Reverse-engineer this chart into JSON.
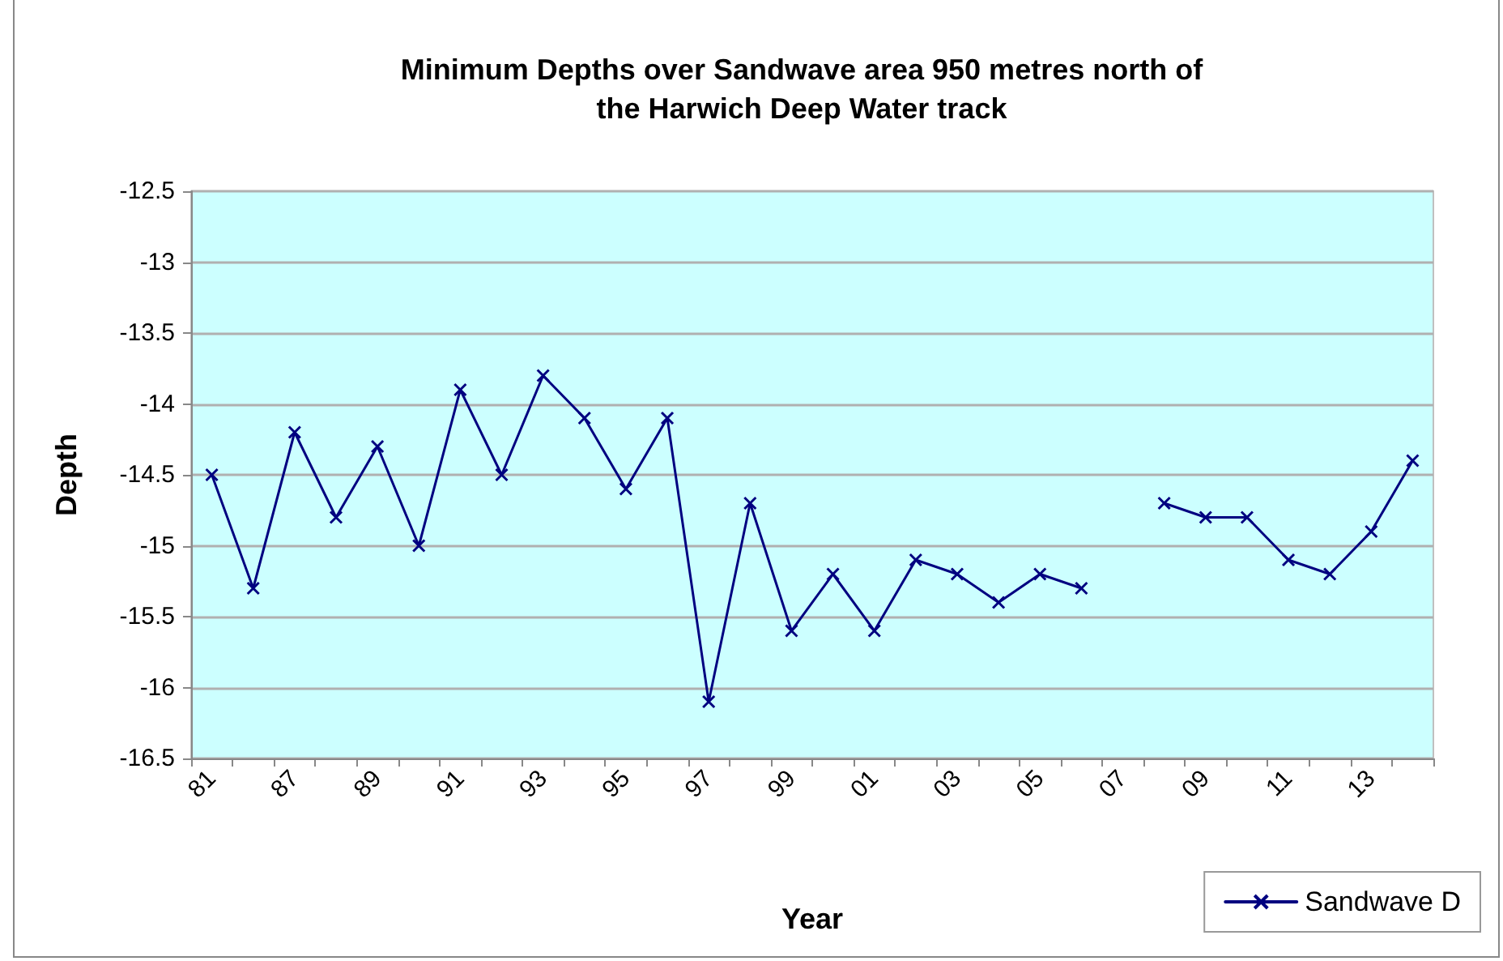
{
  "chart_data": {
    "type": "line",
    "title": "Minimum Depths over Sandwave area 950 metres north of\nthe Harwich Deep Water track",
    "xlabel": "Year",
    "ylabel": "Depth",
    "categories": [
      "81",
      null,
      "87",
      null,
      "89",
      null,
      "91",
      null,
      "93",
      null,
      "95",
      null,
      "97",
      null,
      "99",
      null,
      "01",
      null,
      "03",
      null,
      "05",
      null,
      "07",
      null,
      "09",
      null,
      "11",
      null,
      "13",
      null
    ],
    "series": [
      {
        "name": "Sandwave D",
        "color": "#000080",
        "values": [
          -14.5,
          -15.3,
          -14.2,
          -14.8,
          -14.3,
          -15.0,
          -13.9,
          -14.5,
          -13.8,
          -14.1,
          -14.6,
          -14.1,
          -16.1,
          -14.7,
          -15.6,
          -15.2,
          -15.6,
          -15.1,
          -15.2,
          -15.4,
          -15.2,
          -15.3,
          null,
          -14.7,
          -14.8,
          -14.8,
          -15.1,
          -15.2,
          -14.9,
          -14.4
        ]
      }
    ],
    "ylim": [
      -16.5,
      -12.5
    ],
    "yticks": [
      -16.5,
      -16,
      -15.5,
      -15,
      -14.5,
      -14,
      -13.5,
      -13,
      -12.5
    ],
    "grid": "y",
    "legend": "bottom right",
    "marker": "cross",
    "line_style": "solid"
  }
}
